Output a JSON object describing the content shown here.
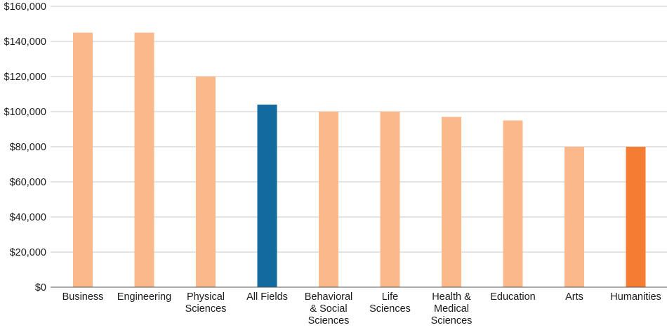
{
  "chart_data": {
    "type": "bar",
    "categories": [
      "Business",
      "Engineering",
      "Physical Sciences",
      "All Fields",
      "Behavioral & Social Sciences",
      "Life Sciences",
      "Health & Medical Sciences",
      "Education",
      "Arts",
      "Humanities"
    ],
    "category_label_lines": [
      [
        "Business"
      ],
      [
        "Engineering"
      ],
      [
        "Physical",
        "Sciences"
      ],
      [
        "All Fields"
      ],
      [
        "Behavioral",
        "& Social",
        "Sciences"
      ],
      [
        "Life",
        "Sciences"
      ],
      [
        "Health &",
        "Medical",
        "Sciences"
      ],
      [
        "Education"
      ],
      [
        "Arts"
      ],
      [
        "Humanities"
      ]
    ],
    "values": [
      145000,
      145000,
      120000,
      104000,
      100000,
      100000,
      97000,
      95000,
      80000,
      80000
    ],
    "ylim": [
      0,
      160000
    ],
    "yticks": [
      0,
      20000,
      40000,
      60000,
      80000,
      100000,
      120000,
      140000,
      160000
    ],
    "ytick_labels": [
      "$0",
      "$20,000",
      "$40,000",
      "$60,000",
      "$80,000",
      "$100,000",
      "$120,000",
      "$140,000",
      "$160,000"
    ],
    "grid": true,
    "title": "",
    "xlabel": "",
    "ylabel": "",
    "colors": {
      "default": "#fbb98b",
      "All Fields": "#136a9e",
      "Humanities": "#f47c33",
      "grid": "#c8c8c8",
      "axis": "#555555"
    }
  }
}
